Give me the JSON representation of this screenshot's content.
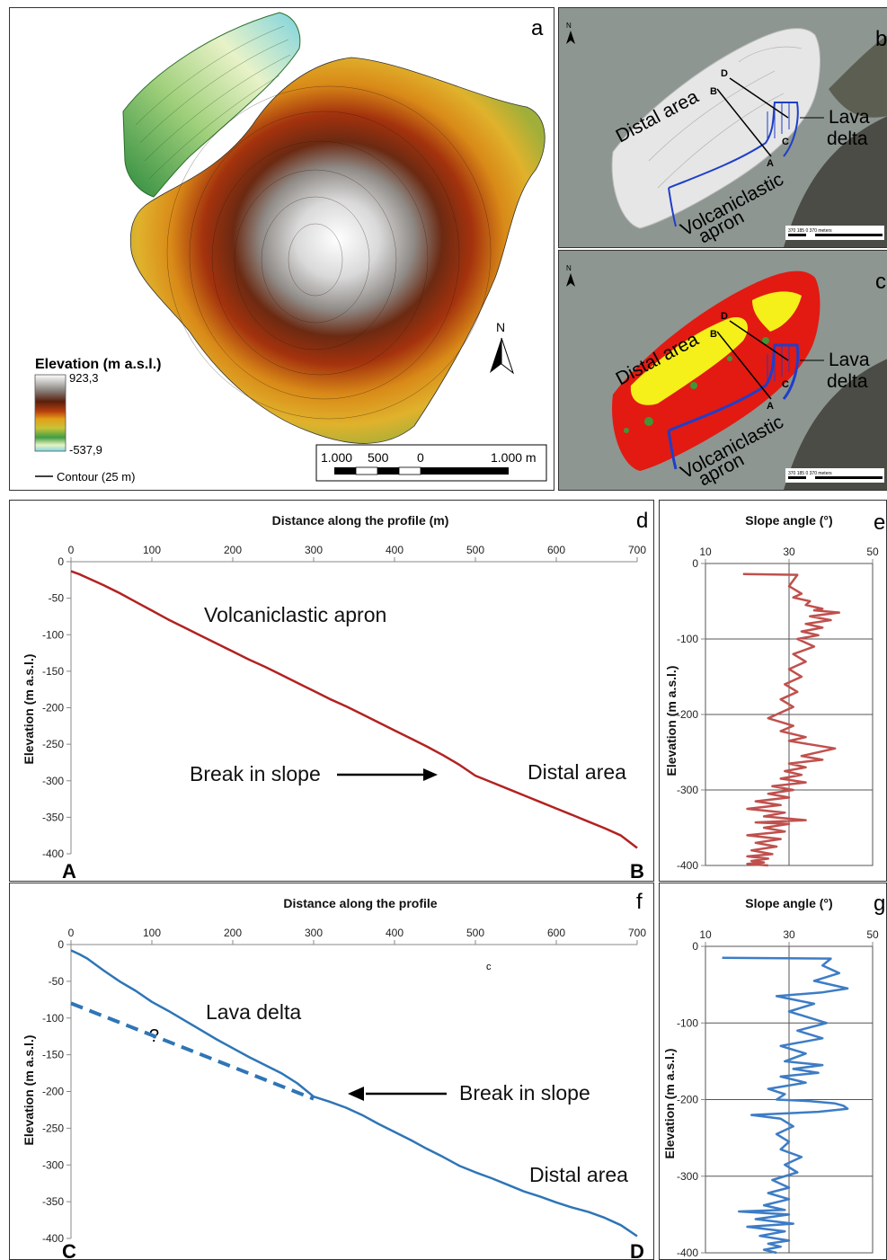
{
  "panel_a": {
    "letter": "a",
    "legend_title": "Elevation (m a.s.l.)",
    "legend_max": "923,3",
    "legend_min": "-537,9",
    "contour_label": "Contour (25 m)",
    "north": "N",
    "scale_labels": [
      "1.000",
      "500",
      "0",
      "1.000 m"
    ]
  },
  "panel_b": {
    "letter": "b",
    "north": "N",
    "labels": {
      "distal": "Distal area",
      "lava1": "Lava",
      "lava2": "delta",
      "apron1": "Volcaniclastic",
      "apron2": "apron"
    },
    "points": {
      "A": "A",
      "B": "B",
      "C": "C",
      "D": "D"
    },
    "scale_text": "370   185     0            370 meters"
  },
  "panel_c": {
    "letter": "c",
    "north": "N",
    "labels": {
      "distal": "Distal area",
      "lava1": "Lava",
      "lava2": "delta",
      "apron1": "Volcaniclastic",
      "apron2": "apron"
    },
    "points": {
      "A": "A",
      "B": "B",
      "C": "C",
      "D": "D"
    },
    "scale_text": "370   185     0            370 meters"
  },
  "panel_d": {
    "letter": "d",
    "start": "A",
    "end": "B",
    "annotations": {
      "apron": "Volcaniclastic apron",
      "break": "Break in slope",
      "distal": "Distal area"
    }
  },
  "panel_e": {
    "letter": "e"
  },
  "panel_f": {
    "letter": "f",
    "start": "C",
    "end": "D",
    "small_c": "c",
    "question": "?",
    "annotations": {
      "lava": "Lava delta",
      "break": "Break in slope",
      "distal": "Distal area"
    }
  },
  "panel_g": {
    "letter": "g"
  },
  "chart_data": [
    {
      "id": "d",
      "type": "line",
      "title": "Distance along the profile (m)",
      "xlabel": "",
      "ylabel": "Elevation (m a.s.l.)",
      "xlim": [
        0,
        700
      ],
      "ylim": [
        -400,
        0
      ],
      "xticks": [
        0,
        100,
        200,
        300,
        400,
        500,
        600,
        700
      ],
      "yticks": [
        0,
        -50,
        -100,
        -150,
        -200,
        -250,
        -300,
        -350,
        -400
      ],
      "grid": false,
      "color": "#b22222",
      "series": [
        {
          "x": [
            0,
            10,
            20,
            40,
            60,
            80,
            100,
            120,
            140,
            160,
            180,
            200,
            220,
            240,
            260,
            280,
            300,
            320,
            340,
            360,
            380,
            400,
            420,
            440,
            460,
            480,
            500,
            520,
            540,
            560,
            580,
            600,
            620,
            640,
            660,
            680,
            700
          ],
          "y": [
            -13,
            -17,
            -22,
            -32,
            -43,
            -55,
            -67,
            -79,
            -90,
            -101,
            -112,
            -123,
            -134,
            -144,
            -155,
            -166,
            -177,
            -188,
            -198,
            -209,
            -220,
            -231,
            -242,
            -253,
            -265,
            -278,
            -293,
            -302,
            -311,
            -320,
            -329,
            -338,
            -347,
            -356,
            -365,
            -375,
            -392
          ]
        }
      ]
    },
    {
      "id": "e",
      "type": "line",
      "title": "Slope angle (°)",
      "xlabel": "",
      "ylabel": "Elevation (m a.s.l.)",
      "xlim": [
        10,
        50
      ],
      "ylim": [
        -400,
        0
      ],
      "xticks": [
        10,
        30,
        50
      ],
      "yticks": [
        0,
        -100,
        -200,
        -300,
        -400
      ],
      "grid": true,
      "color": "#c0504d",
      "series": [
        {
          "x": [
            19,
            32,
            30,
            33,
            31,
            35,
            34,
            38,
            36,
            42,
            35,
            40,
            34,
            38,
            33,
            37,
            32,
            36,
            31,
            34,
            30,
            33,
            29,
            32,
            28,
            31,
            25,
            31,
            28,
            34,
            30,
            41,
            33,
            38,
            30,
            34,
            29,
            33,
            28,
            34,
            26,
            31,
            25,
            30,
            22,
            28,
            20,
            29,
            24,
            34,
            22,
            30,
            24,
            29,
            20,
            28,
            22,
            27,
            21,
            26,
            20,
            25,
            21,
            24,
            20,
            25
          ],
          "y": [
            -14,
            -15,
            -30,
            -40,
            -45,
            -50,
            -55,
            -60,
            -62,
            -65,
            -70,
            -75,
            -80,
            -85,
            -90,
            -95,
            -100,
            -110,
            -120,
            -130,
            -140,
            -150,
            -160,
            -170,
            -180,
            -190,
            -205,
            -215,
            -222,
            -230,
            -235,
            -245,
            -255,
            -260,
            -265,
            -270,
            -275,
            -280,
            -285,
            -290,
            -295,
            -300,
            -305,
            -310,
            -315,
            -320,
            -325,
            -330,
            -335,
            -340,
            -343,
            -345,
            -350,
            -355,
            -360,
            -365,
            -370,
            -375,
            -380,
            -385,
            -388,
            -391,
            -394,
            -396,
            -398,
            -400
          ]
        }
      ]
    },
    {
      "id": "f",
      "type": "line",
      "title": "Distance along the profile",
      "xlabel": "",
      "ylabel": "Elevation (m a.s.l.)",
      "xlim": [
        0,
        700
      ],
      "ylim": [
        -400,
        0
      ],
      "xticks": [
        0,
        100,
        200,
        300,
        400,
        500,
        600,
        700
      ],
      "yticks": [
        0,
        -50,
        -100,
        -150,
        -200,
        -250,
        -300,
        -350,
        -400
      ],
      "grid": false,
      "color": "#2e75b6",
      "series": [
        {
          "x": [
            0,
            10,
            20,
            40,
            60,
            80,
            100,
            120,
            140,
            160,
            180,
            200,
            220,
            240,
            260,
            280,
            300,
            320,
            340,
            360,
            380,
            400,
            420,
            440,
            460,
            480,
            500,
            520,
            540,
            560,
            580,
            600,
            620,
            640,
            660,
            680,
            700
          ],
          "y": [
            -8,
            -13,
            -19,
            -35,
            -50,
            -63,
            -78,
            -90,
            -103,
            -116,
            -129,
            -141,
            -153,
            -164,
            -175,
            -189,
            -207,
            -214,
            -222,
            -232,
            -244,
            -255,
            -266,
            -278,
            -289,
            -301,
            -310,
            -318,
            -327,
            -336,
            -343,
            -351,
            -358,
            -364,
            -372,
            -382,
            -397
          ]
        },
        {
          "x": [
            0,
            300
          ],
          "y": [
            -80,
            -210
          ],
          "dashed": true
        }
      ]
    },
    {
      "id": "g",
      "type": "line",
      "title": "Slope angle (°)",
      "xlabel": "",
      "ylabel": "Elevation (m a.s.l.)",
      "xlim": [
        10,
        50
      ],
      "ylim": [
        -400,
        0
      ],
      "xticks": [
        10,
        30,
        50
      ],
      "yticks": [
        0,
        -100,
        -200,
        -300,
        -400
      ],
      "grid": true,
      "color": "#3d7cc6",
      "series": [
        {
          "x": [
            14,
            40,
            38,
            42,
            36,
            44,
            38,
            27,
            36,
            30,
            39,
            32,
            38,
            28,
            34,
            29,
            38,
            31,
            37,
            28,
            34,
            25,
            29,
            27,
            35,
            41,
            43,
            44,
            37,
            21,
            28,
            31,
            27,
            30,
            28,
            33,
            29,
            32,
            26,
            30,
            25,
            30,
            24,
            29,
            18,
            30,
            22,
            31,
            20,
            29,
            23,
            30,
            25,
            28,
            24,
            27
          ],
          "y": [
            -15,
            -16,
            -25,
            -35,
            -45,
            -55,
            -60,
            -65,
            -75,
            -85,
            -100,
            -110,
            -120,
            -130,
            -140,
            -150,
            -155,
            -160,
            -165,
            -170,
            -178,
            -186,
            -193,
            -200,
            -202,
            -205,
            -208,
            -212,
            -216,
            -220,
            -225,
            -235,
            -245,
            -255,
            -265,
            -275,
            -285,
            -295,
            -305,
            -315,
            -322,
            -330,
            -338,
            -344,
            -346,
            -350,
            -356,
            -362,
            -366,
            -372,
            -378,
            -384,
            -388,
            -392,
            -396,
            -400
          ]
        }
      ]
    }
  ]
}
